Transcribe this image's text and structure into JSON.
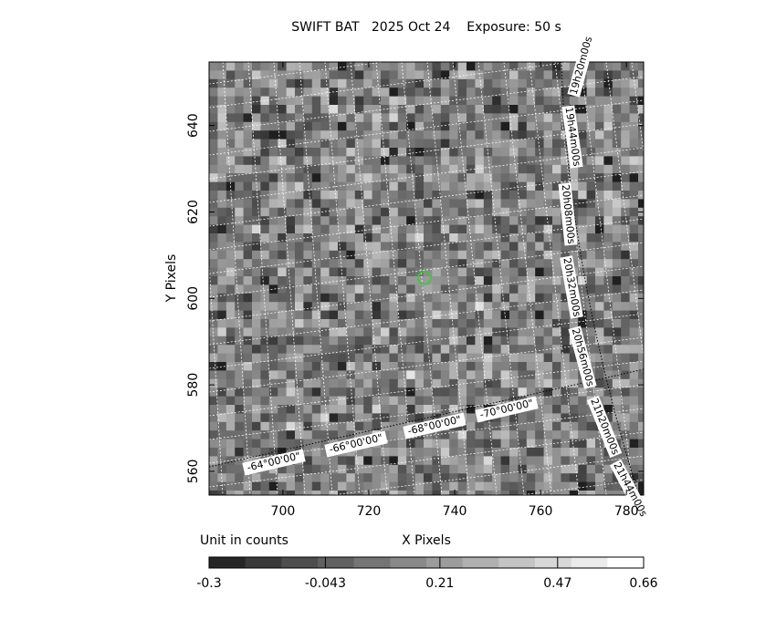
{
  "chart_data": {
    "type": "image",
    "title": "SWIFT BAT   2025 Oct 24    Exposure: 50 s",
    "x_label": "X Pixels",
    "y_label": "Y Pixels",
    "xlim": [
      682.8,
      784.0
    ],
    "ylim": [
      554.5,
      654.7
    ],
    "xticks": [
      700,
      720,
      740,
      760,
      780
    ],
    "yticks": [
      560,
      580,
      600,
      620,
      640
    ],
    "colorbar": {
      "label": "Unit in counts",
      "lim": [
        -0.3,
        0.66
      ],
      "ticks": [
        -0.3,
        -0.043,
        0.21,
        0.47,
        0.66
      ]
    },
    "annotations": [
      "19h20m00s",
      "19h44m00s",
      "20h08m00s",
      "20h32m00s",
      "20h56m00s",
      "21h20m00s",
      "21h44m00s",
      "-64°00'00\"",
      "-66°00'00\"",
      "-68°00'00\"",
      "-70°00'00\""
    ]
  }
}
